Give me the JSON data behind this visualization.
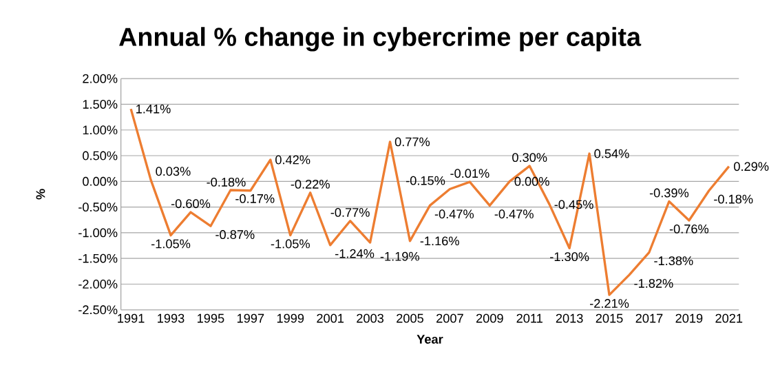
{
  "chart_data": {
    "type": "line",
    "title": "Annual % change in cybercrime per capita",
    "xlabel": "Year",
    "ylabel": "%",
    "x": [
      1991,
      1992,
      1993,
      1994,
      1995,
      1996,
      1997,
      1998,
      1999,
      2000,
      2001,
      2002,
      2003,
      2004,
      2005,
      2006,
      2007,
      2008,
      2009,
      2010,
      2011,
      2012,
      2013,
      2014,
      2015,
      2016,
      2017,
      2018,
      2019,
      2020,
      2021
    ],
    "series": [
      {
        "color": "#ed7d31",
        "values": [
          1.41,
          0.03,
          -1.05,
          -0.6,
          -0.87,
          -0.17,
          -0.18,
          0.42,
          -1.05,
          -0.22,
          -1.24,
          -0.77,
          -1.19,
          0.77,
          -1.16,
          -0.47,
          -0.15,
          -0.01,
          -0.47,
          0.0,
          0.3,
          -0.45,
          -1.3,
          0.54,
          -2.21,
          -1.82,
          -1.38,
          -0.39,
          -0.76,
          -0.18,
          0.29
        ],
        "value_labels": [
          "1.41%",
          "0.03%",
          "-1.05%",
          "-0.60%",
          "-0.87%",
          "-0.17%",
          "-0.18%",
          "0.42%",
          "-1.05%",
          "-0.22%",
          "-1.24%",
          "-0.77%",
          "-1.19%",
          "0.77%",
          "-1.16%",
          "-0.47%",
          "-0.15%",
          "-0.01%",
          "-0.47%",
          "0.00%",
          "0.30%",
          "-0.45%",
          "-1.30%",
          "0.54%",
          "-2.21%",
          "-1.82%",
          "-1.38%",
          "-0.39%",
          "-0.76%",
          "-0.18%",
          "0.29%"
        ]
      }
    ],
    "xlim": [
      1990.5,
      2021.5
    ],
    "xticks": [
      1991,
      1993,
      1995,
      1997,
      1999,
      2001,
      2003,
      2005,
      2007,
      2009,
      2011,
      2013,
      2015,
      2017,
      2019,
      2021
    ],
    "ylim": [
      -2.5,
      2.0
    ],
    "yticks": [
      {
        "value": -2.5,
        "label": "-2.50%"
      },
      {
        "value": -2.0,
        "label": "-2.00%"
      },
      {
        "value": -1.5,
        "label": "-1.50%"
      },
      {
        "value": -1.0,
        "label": "-1.00%"
      },
      {
        "value": -0.5,
        "label": "-0.50%"
      },
      {
        "value": 0.0,
        "label": "0.00%"
      },
      {
        "value": 0.5,
        "label": "0.50%"
      },
      {
        "value": 1.0,
        "label": "1.00%"
      },
      {
        "value": 1.5,
        "label": "1.50%"
      },
      {
        "value": 2.0,
        "label": "2.00%"
      }
    ],
    "grid": "y",
    "marker": "none",
    "line_style": "solid",
    "legend": false
  }
}
